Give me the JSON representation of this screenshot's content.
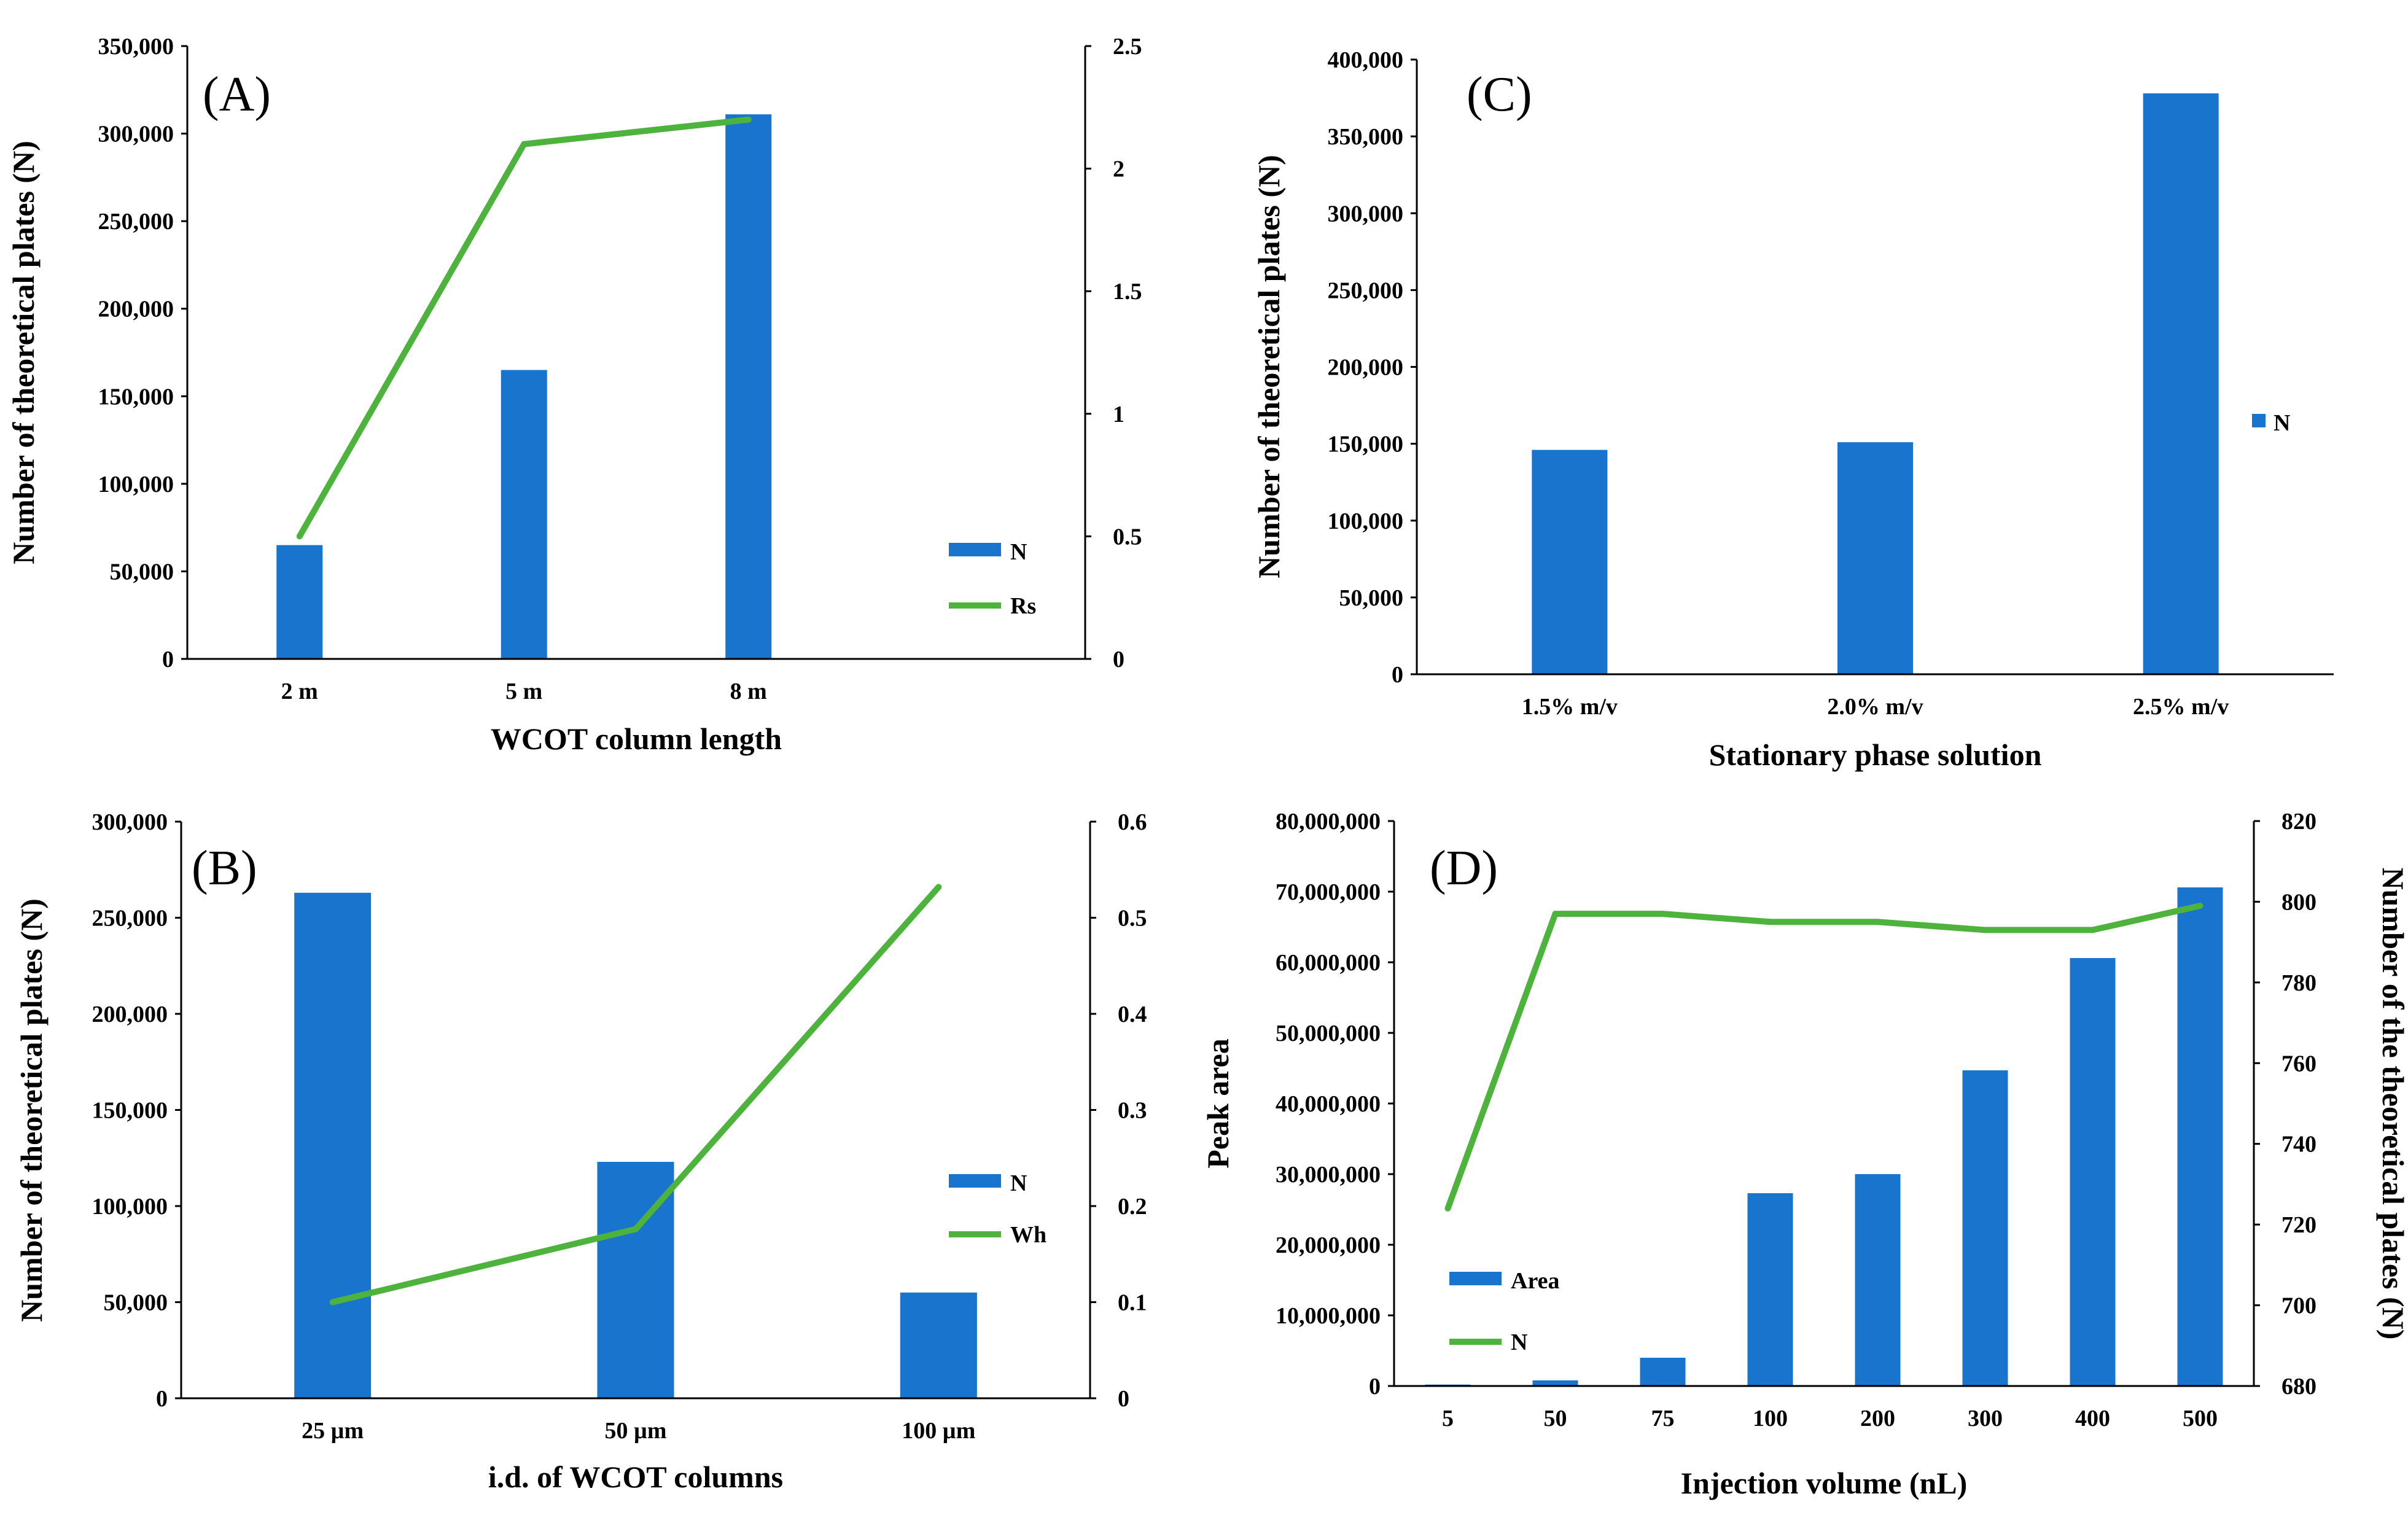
{
  "colors": {
    "bar": "#1874CD",
    "line": "#4DB33D",
    "axis": "#000000",
    "background": "#ffffff"
  },
  "chart_data": [
    {
      "id": "A",
      "panel_label": "(A)",
      "type": "bar+line",
      "categories": [
        "2 m",
        "5 m",
        "8 m"
      ],
      "extra_category_slots": 1,
      "series": [
        {
          "name": "N",
          "type": "bar",
          "axis": "left",
          "values": [
            65000,
            165000,
            311000
          ]
        },
        {
          "name": "Rs",
          "type": "line",
          "axis": "right",
          "values": [
            0.5,
            2.1,
            2.2
          ]
        }
      ],
      "xlabel": "WCOT column length",
      "ylabel": "Number of theoretical plates (N)",
      "ylabel_right": "",
      "ylim": [
        0,
        350000
      ],
      "ylim_right": [
        0,
        2.5
      ],
      "yticks": [
        "0",
        "50,000",
        "100,000",
        "150,000",
        "200,000",
        "250,000",
        "300,000",
        "350,000"
      ],
      "yticks_right": [
        "0",
        "0.5",
        "1",
        "1.5",
        "2",
        "2.5"
      ],
      "legend": [
        "N",
        "Rs"
      ],
      "legend_position": "bottom-right",
      "grid": false
    },
    {
      "id": "B",
      "panel_label": "(B)",
      "type": "bar+line",
      "categories": [
        "25 µm",
        "50 µm",
        "100 µm"
      ],
      "extra_category_slots": 0,
      "series": [
        {
          "name": "N",
          "type": "bar",
          "axis": "left",
          "values": [
            263000,
            123000,
            55000
          ]
        },
        {
          "name": "Wh",
          "type": "line",
          "axis": "right",
          "values": [
            0.1,
            0.176,
            0.532
          ]
        }
      ],
      "xlabel": "i.d. of WCOT columns",
      "ylabel": "Number of theoretical plates (N)",
      "ylabel_right": "",
      "ylim": [
        0,
        300000
      ],
      "ylim_right": [
        0,
        0.6
      ],
      "yticks": [
        "0",
        "50,000",
        "100,000",
        "150,000",
        "200,000",
        "250,000",
        "300,000"
      ],
      "yticks_right": [
        "0",
        "0.1",
        "0.2",
        "0.3",
        "0.4",
        "0.5",
        "0.6"
      ],
      "legend": [
        "N",
        "Wh"
      ],
      "legend_position": "right",
      "grid": false
    },
    {
      "id": "C",
      "panel_label": "(C)",
      "type": "bar",
      "categories": [
        "1.5% m/v",
        "2.0% m/v",
        "2.5% m/v"
      ],
      "extra_category_slots": 0,
      "series": [
        {
          "name": "N",
          "type": "bar",
          "axis": "left",
          "values": [
            146000,
            151000,
            378000
          ]
        }
      ],
      "xlabel": "Stationary phase solution",
      "ylabel": "Number of theoretical plates (N)",
      "ylabel_right": "",
      "ylim": [
        0,
        400000
      ],
      "yticks": [
        "0",
        "50,000",
        "100,000",
        "150,000",
        "200,000",
        "250,000",
        "300,000",
        "350,000",
        "400,000"
      ],
      "legend": [
        "N"
      ],
      "legend_position": "right",
      "grid": false
    },
    {
      "id": "D",
      "panel_label": "(D)",
      "type": "bar+line",
      "categories": [
        "5",
        "50",
        "75",
        "100",
        "200",
        "300",
        "400",
        "500"
      ],
      "extra_category_slots": 0,
      "series": [
        {
          "name": "Area",
          "type": "bar",
          "axis": "left",
          "values": [
            200000,
            800000,
            4000000,
            27300000,
            30000000,
            44700000,
            60600000,
            70600000
          ]
        },
        {
          "name": "N",
          "type": "line",
          "axis": "right",
          "values": [
            724,
            797,
            797,
            795,
            795,
            793,
            793,
            799
          ]
        }
      ],
      "xlabel": "Injection volume (nL)",
      "ylabel": "Peak area",
      "ylabel_right": "Number of the theoretical plates (N)",
      "ylim": [
        0,
        80000000
      ],
      "ylim_right": [
        680,
        820
      ],
      "yticks": [
        "0",
        "10,000,000",
        "20,000,000",
        "30,000,000",
        "40,000,000",
        "50,000,000",
        "60,000,000",
        "70,000,000",
        "80,000,000"
      ],
      "yticks_right": [
        "680",
        "700",
        "720",
        "740",
        "760",
        "780",
        "800",
        "820"
      ],
      "legend": [
        "Area",
        "N"
      ],
      "legend_position": "bottom-left",
      "grid": false
    }
  ]
}
